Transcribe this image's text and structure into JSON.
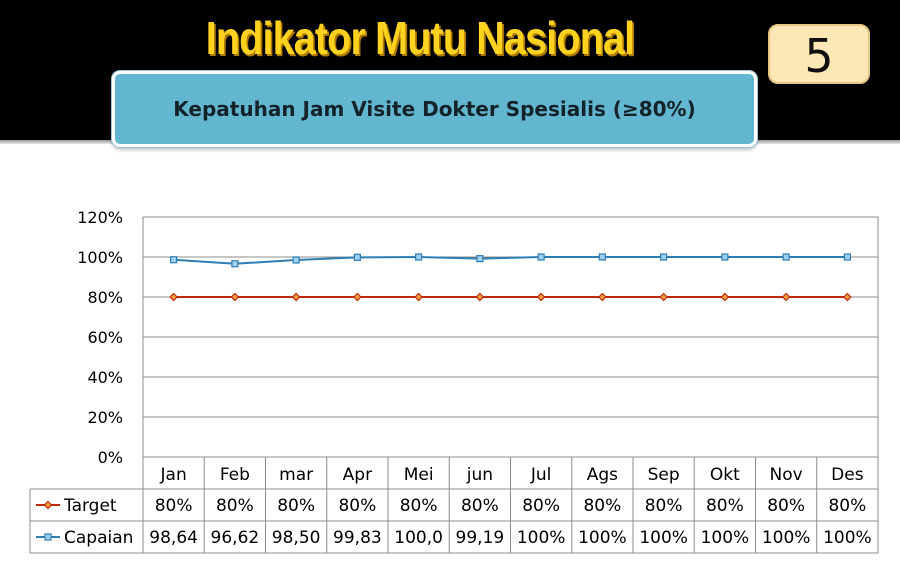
{
  "header": {
    "title": "Indikator Mutu Nasional",
    "subtitle": "Kepatuhan Jam Visite Dokter Spesialis (≥80%)",
    "page_number": "5"
  },
  "colors": {
    "background_top": "#000000",
    "title": "#ffd21f",
    "subtitle_box": "#63b6cf",
    "page_box": "#fde7b4",
    "target_line": "#c0280c",
    "capaian_line": "#2e7db5"
  },
  "chart_data": {
    "type": "line",
    "title": "",
    "xlabel": "",
    "ylabel": "",
    "categories": [
      "Jan",
      "Feb",
      "mar",
      "Apr",
      "Mei",
      "jun",
      "Jul",
      "Ags",
      "Sep",
      "Okt",
      "Nov",
      "Des"
    ],
    "ylim": [
      0,
      120
    ],
    "yticks": [
      "0%",
      "20%",
      "40%",
      "60%",
      "80%",
      "100%",
      "120%"
    ],
    "ytick_values": [
      0,
      20,
      40,
      60,
      80,
      100,
      120
    ],
    "grid": true,
    "legend": "data-table",
    "series": [
      {
        "name": "Target",
        "values": [
          80,
          80,
          80,
          80,
          80,
          80,
          80,
          80,
          80,
          80,
          80,
          80
        ],
        "labels": [
          "80%",
          "80%",
          "80%",
          "80%",
          "80%",
          "80%",
          "80%",
          "80%",
          "80%",
          "80%",
          "80%",
          "80%"
        ],
        "color": "#c0280c",
        "marker": "diamond"
      },
      {
        "name": "Capaian",
        "values": [
          98.64,
          96.62,
          98.5,
          99.83,
          100.0,
          99.19,
          100,
          100,
          100,
          100,
          100,
          100
        ],
        "labels": [
          "98,64",
          "96,62",
          "98,50",
          "99,83",
          "100,0",
          "99,19",
          "100%",
          "100%",
          "100%",
          "100%",
          "100%",
          "100%"
        ],
        "color": "#2e7db5",
        "marker": "square"
      }
    ]
  }
}
